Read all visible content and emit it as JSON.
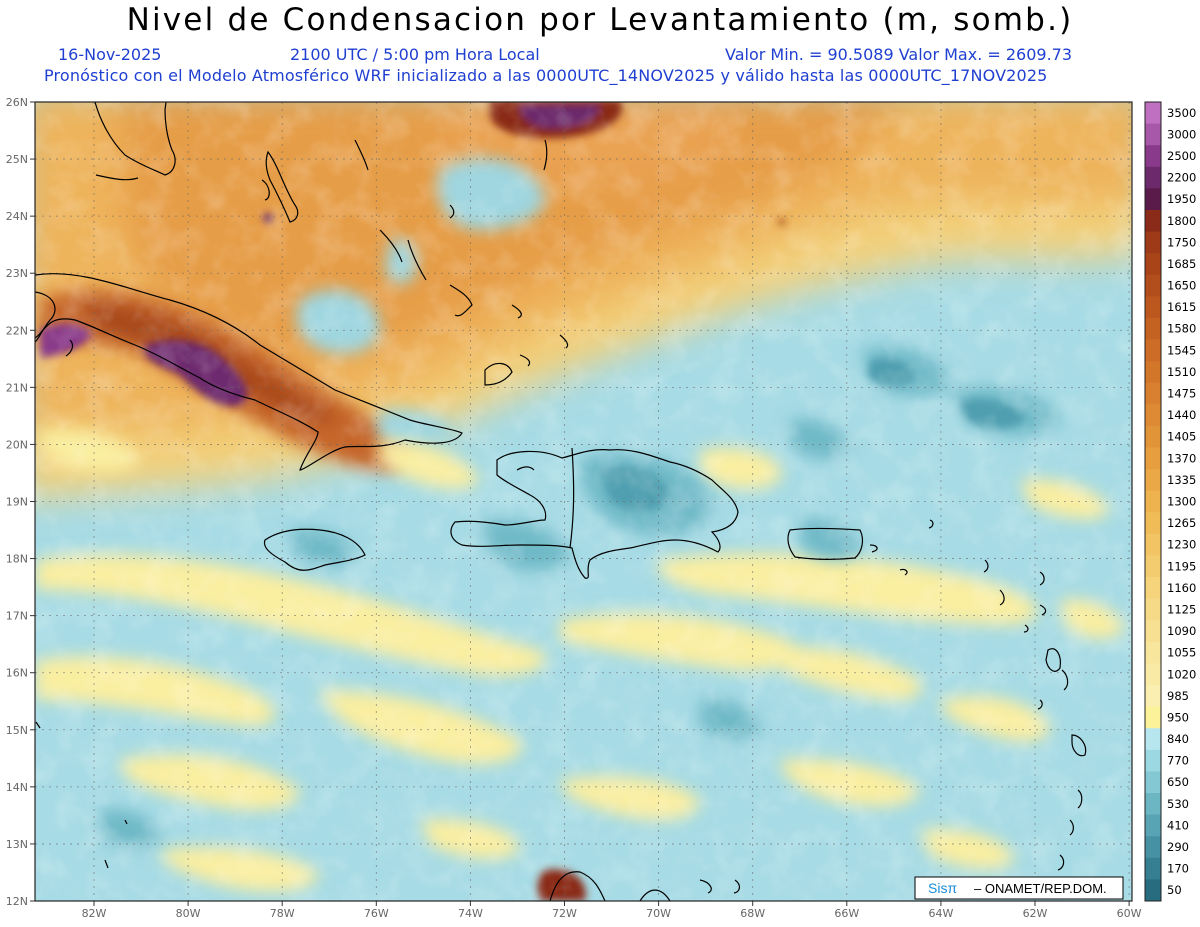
{
  "header": {
    "title": "Nivel de Condensacion por Levantamiento (m, somb.)",
    "date": "16-Nov-2025",
    "time": "2100 UTC / 5:00 pm Hora Local",
    "minmax": "Valor Min. = 90.5089   Valor Max. = 2609.73",
    "subtitle": "Pronóstico con el Modelo Atmosférico WRF inicializado a las 0000UTC_14NOV2025 y válido hasta las  0000UTC_17NOV2025"
  },
  "axes": {
    "lat_labels": [
      "26N",
      "25N",
      "24N",
      "23N",
      "22N",
      "21N",
      "20N",
      "19N",
      "18N",
      "17N",
      "16N",
      "15N",
      "14N",
      "13N",
      "12N"
    ],
    "lon_labels": [
      "82W",
      "80W",
      "78W",
      "76W",
      "74W",
      "72W",
      "70W",
      "68W",
      "66W",
      "64W",
      "62W",
      "60W"
    ]
  },
  "colorbar": {
    "labels": [
      "3500",
      "3000",
      "2500",
      "2200",
      "1950",
      "1800",
      "1750",
      "1685",
      "1650",
      "1615",
      "1580",
      "1545",
      "1510",
      "1475",
      "1440",
      "1405",
      "1370",
      "1335",
      "1300",
      "1265",
      "1230",
      "1195",
      "1160",
      "1125",
      "1090",
      "1055",
      "1020",
      "985",
      "950",
      "840",
      "770",
      "650",
      "530",
      "410",
      "290",
      "170",
      "50"
    ],
    "colors": [
      "#c070c0",
      "#a858a8",
      "#8a3a8a",
      "#6c2a6c",
      "#5a1a4a",
      "#8a2a18",
      "#9e3a18",
      "#a84418",
      "#b24e1c",
      "#bc581e",
      "#c46222",
      "#cc6c26",
      "#d2762a",
      "#d88030",
      "#de8a34",
      "#e29438",
      "#e69e3e",
      "#eaa846",
      "#eeb24e",
      "#f0bc58",
      "#f2c464",
      "#f4cc70",
      "#f5d47c",
      "#f6da88",
      "#f7e092",
      "#f8e69c",
      "#f9eaa6",
      "#faeeb0",
      "#fbf29a",
      "#b8e6ee",
      "#9cd8e2",
      "#84c8d4",
      "#6cb6c4",
      "#58a4b4",
      "#4692a4",
      "#367e92",
      "#286c80"
    ]
  },
  "credit": {
    "logo": "Sisπ",
    "text": "– ONAMET/REP.DOM."
  }
}
